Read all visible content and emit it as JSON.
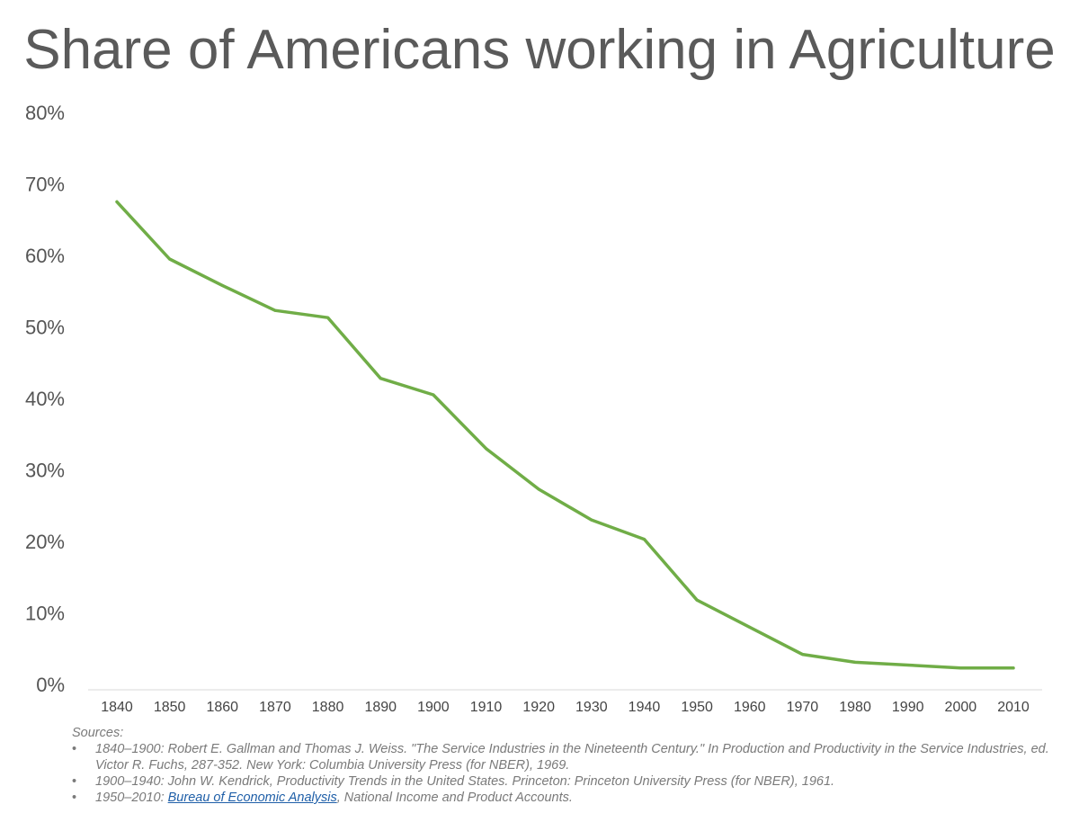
{
  "title": "Share of Americans working in Agriculture",
  "chart_data": {
    "type": "line",
    "title": "Share of Americans working in Agriculture",
    "xlabel": "",
    "ylabel": "",
    "x": [
      "1840",
      "1850",
      "1860",
      "1870",
      "1880",
      "1890",
      "1900",
      "1910",
      "1920",
      "1930",
      "1940",
      "1950",
      "1960",
      "1970",
      "1980",
      "1990",
      "2000",
      "2010"
    ],
    "series": [
      {
        "name": "Share of Americans working in Agriculture",
        "color": "#70ad47",
        "values": [
          67.5,
          59.5,
          55.8,
          52.3,
          51.3,
          42.8,
          40.5,
          33.0,
          27.3,
          23.0,
          20.3,
          11.8,
          8.0,
          4.2,
          3.1,
          2.7,
          2.3,
          2.3
        ]
      }
    ],
    "ylim": [
      0,
      80
    ],
    "yticks": [
      0,
      10,
      20,
      30,
      40,
      50,
      60,
      70,
      80
    ],
    "ytick_labels": [
      "0%",
      "10%",
      "20%",
      "30%",
      "40%",
      "50%",
      "60%",
      "70%",
      "80%"
    ],
    "grid": false,
    "legend": "none"
  },
  "sources": {
    "heading": "Sources:",
    "items": [
      {
        "text": "1840–1900: Robert E. Gallman and Thomas J. Weiss. \"The Service Industries in the Nineteenth Century.\" In Production and Productivity in the Service Industries, ed. Victor R. Fuchs, 287-352. New York: Columbia University Press (for NBER), 1969."
      },
      {
        "text": "1900–1940: John W. Kendrick, Productivity Trends in the United States. Princeton: Princeton University Press (for NBER), 1961."
      },
      {
        "prefix": "1950–2010: ",
        "link": "Bureau of Economic Analysis",
        "suffix": ", National Income and Product Accounts."
      }
    ]
  }
}
